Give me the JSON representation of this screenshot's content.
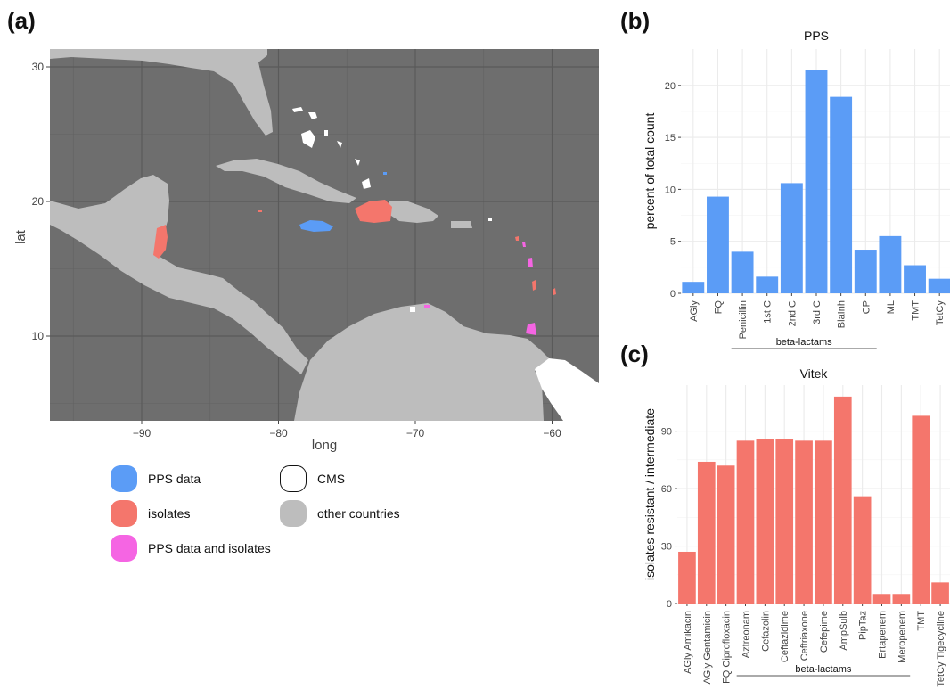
{
  "panels": {
    "a": "(a)",
    "b": "(b)",
    "c": "(c)"
  },
  "colors": {
    "pps": "#5b9cf6",
    "isolates": "#f4766c",
    "both": "#f565e3",
    "cms": "#ffffff",
    "other": "#bdbdbd",
    "sea": "#6e6e6e"
  },
  "map": {
    "xlabel": "long",
    "ylabel": "lat",
    "x_ticks": [
      "−90",
      "−80",
      "−70",
      "−60"
    ],
    "y_ticks": [
      "30",
      "20",
      "10"
    ],
    "legend": {
      "pps": "PPS data",
      "isolates": "isolates",
      "both": "PPS data and isolates",
      "cms": "CMS",
      "other": "other countries"
    }
  },
  "chart_data": [
    {
      "type": "bar",
      "title": "PPS",
      "ylabel": "percent of total count",
      "xlabel": "",
      "categories": [
        "AGly",
        "FQ",
        "Penicillin",
        "1st C",
        "2nd C",
        "3rd C",
        "BlaInh",
        "CP",
        "ML",
        "TMT",
        "TetCy"
      ],
      "values": [
        1.1,
        9.3,
        4.0,
        1.6,
        10.6,
        21.5,
        18.9,
        4.2,
        5.5,
        2.7,
        1.4
      ],
      "ylim": [
        0,
        23.5
      ],
      "yticks": [
        0,
        5,
        10,
        15,
        20
      ],
      "grid": true,
      "color": "#5b9cf6",
      "group_label": "beta-lactams"
    },
    {
      "type": "bar",
      "title": "Vitek",
      "ylabel": "isolates resistant / intermediate",
      "xlabel": "",
      "categories": [
        "AGly Amikacin",
        "AGly Gentamicin",
        "FQ Ciprofloxacin",
        "Aztreonam",
        "Cefazolin",
        "Ceftazidime",
        "Ceftriaxone",
        "Cefepime",
        "AmpSulb",
        "PipTaz",
        "Ertapenem",
        "Meropenem",
        "TMT",
        "TetCy Tigecycline"
      ],
      "values": [
        27,
        74,
        72,
        85,
        86,
        86,
        85,
        85,
        108,
        56,
        5,
        5,
        98,
        11
      ],
      "ylim": [
        0,
        114
      ],
      "yticks": [
        0,
        30,
        60,
        90
      ],
      "grid": true,
      "color": "#f4766c",
      "group_label": "beta-lactams"
    }
  ]
}
